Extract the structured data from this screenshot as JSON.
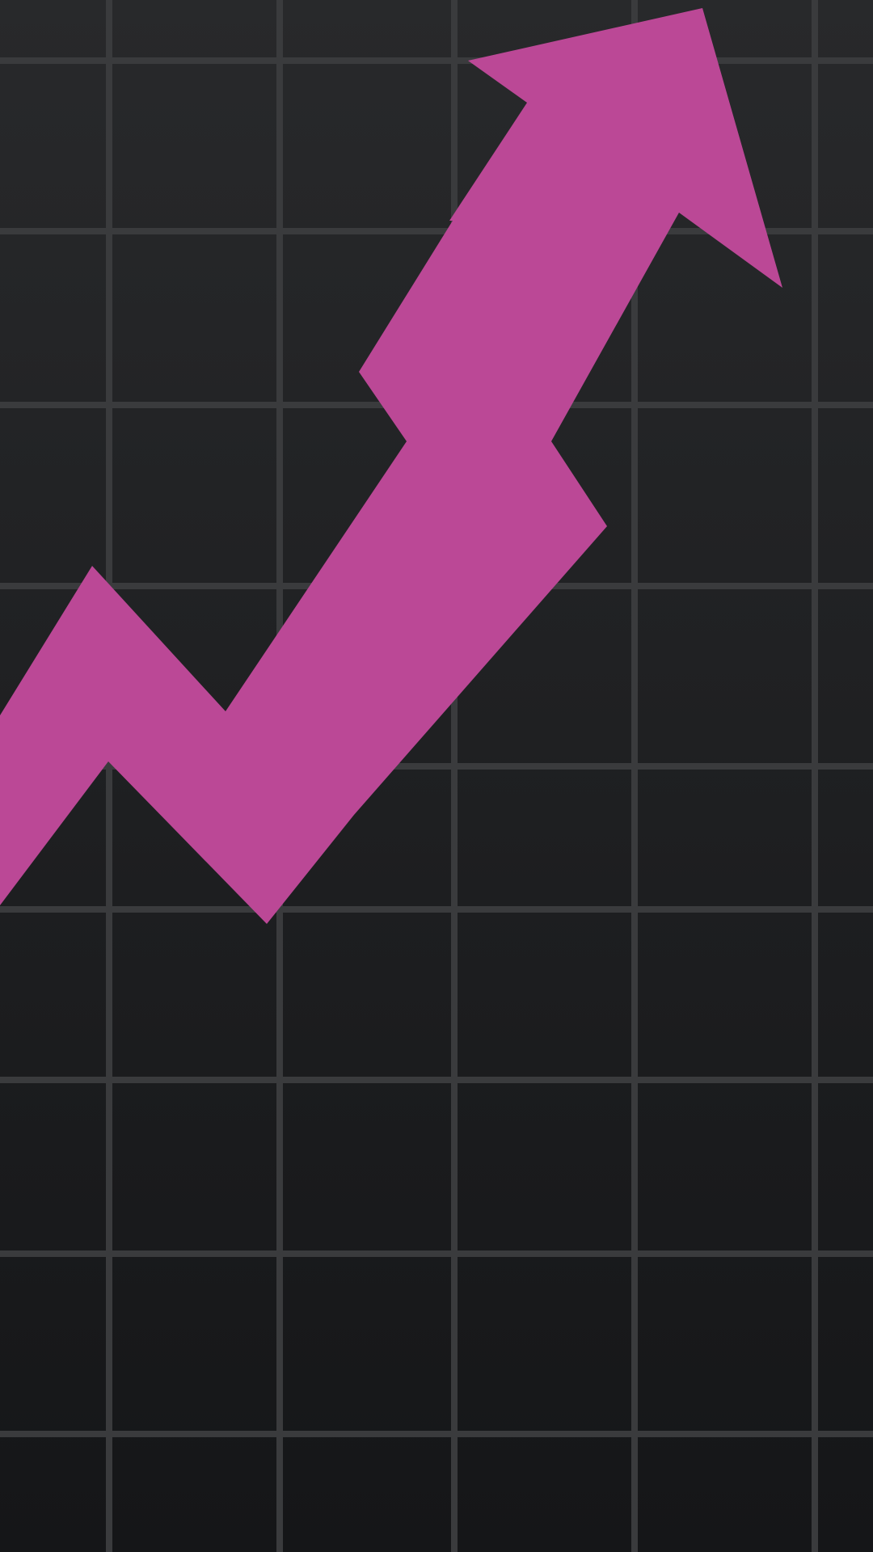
{
  "wallpaper": {
    "icon": "rising-zigzag-arrow-icon",
    "colors": {
      "background_top": "#28292b",
      "background_bottom": "#151618",
      "grid_line": "#3a3b3d",
      "arrow": "#bb4896"
    }
  }
}
